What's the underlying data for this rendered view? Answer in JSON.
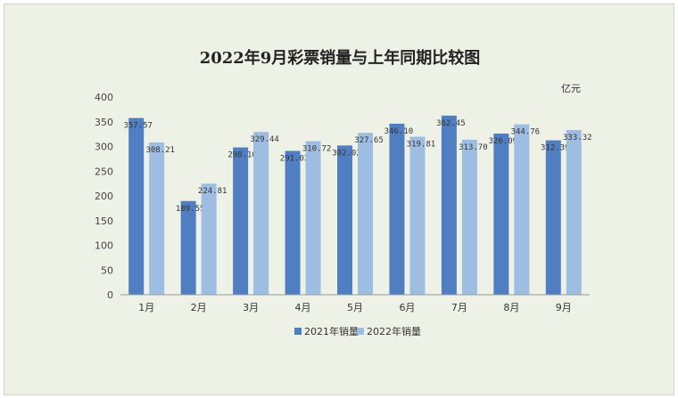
{
  "chart_data": {
    "type": "bar",
    "title": "2022年9月彩票销量与上年同期比较图",
    "unit": "亿元",
    "categories": [
      "1月",
      "2月",
      "3月",
      "4月",
      "5月",
      "6月",
      "7月",
      "8月",
      "9月"
    ],
    "series": [
      {
        "name": "2021年销量",
        "color": "#4f7fc2",
        "values": [
          357.57,
          189.55,
          298.1,
          291.03,
          302.02,
          346.1,
          362.45,
          326.09,
          312.39
        ],
        "labels": [
          "357.57",
          "189.55",
          "298.10",
          "291.03",
          "302.02",
          "346.10",
          "362.45",
          "326.09",
          "312.39"
        ]
      },
      {
        "name": "2022年销量",
        "color": "#9ebde2",
        "values": [
          308.21,
          224.81,
          329.44,
          310.72,
          327.65,
          319.81,
          313.7,
          344.76,
          333.32
        ],
        "labels": [
          "308.21",
          "224.81",
          "329.44",
          "310.72",
          "327.65",
          "319.81",
          "313.70",
          "344.76",
          "333.32"
        ]
      }
    ],
    "ylim": [
      0,
      400
    ],
    "yticks": [
      "0",
      "50",
      "100",
      "150",
      "200",
      "250",
      "300",
      "350",
      "400"
    ],
    "grid": false,
    "legend_position": "bottom"
  }
}
